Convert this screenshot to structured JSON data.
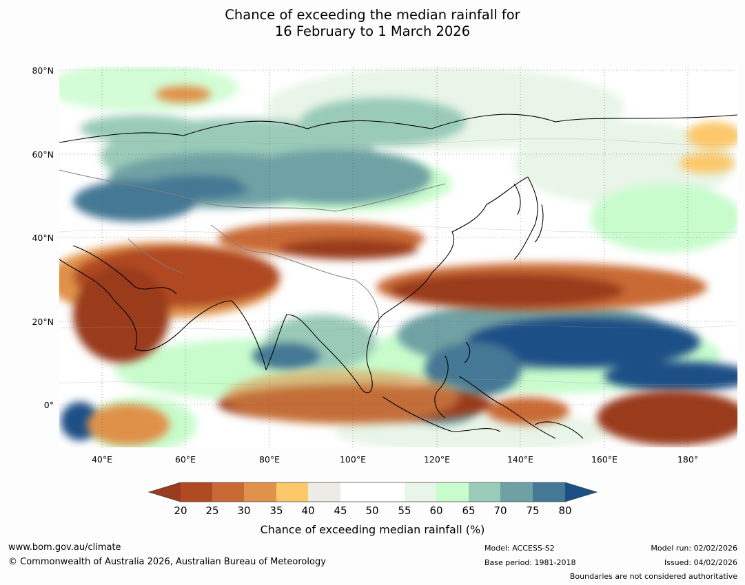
{
  "title": {
    "line1": "Chance of exceeding the median rainfall for",
    "line2": "16 February to 1 March 2026"
  },
  "map": {
    "lat_labels": [
      "80°N",
      "60°N",
      "40°N",
      "20°N",
      "0°"
    ],
    "lon_labels": [
      "40°E",
      "60°E",
      "80°E",
      "100°E",
      "120°E",
      "140°E",
      "160°E",
      "180°"
    ]
  },
  "colorbar": {
    "ticks": [
      "20",
      "25",
      "30",
      "35",
      "40",
      "45",
      "50",
      "55",
      "60",
      "65",
      "70",
      "75",
      "80"
    ],
    "colors": [
      "#9a3a1e",
      "#b04a22",
      "#c96a36",
      "#e0914a",
      "#fcc86a",
      "#ecebe6",
      "#ffffff",
      "#ffffff",
      "#e8f5e8",
      "#c8fccc",
      "#9acbb8",
      "#6fa1a4",
      "#457894",
      "#1a4f86"
    ],
    "label": "Chance of exceeding median rainfall (%)"
  },
  "footer": {
    "website": "www.bom.gov.au/climate",
    "copyright": "© Commonwealth of Australia 2026, Australian Bureau of Meteorology",
    "model": "Model: ACCESS-S2",
    "base_period": "Base period: 1981-2018",
    "model_run": "Model run: 02/02/2026",
    "issued": "Issued: 04/02/2026",
    "boundaries": "Boundaries are not considered authoritative"
  }
}
